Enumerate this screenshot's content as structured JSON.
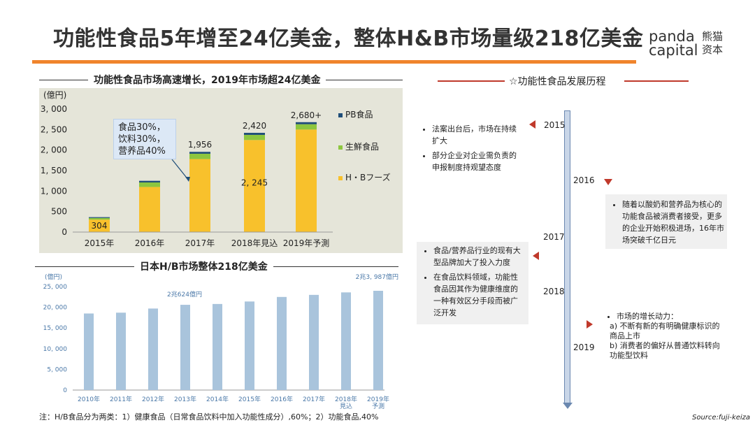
{
  "header": {
    "title": "功能性食品5年增至24亿美金，整体H&B市场量级218亿美金",
    "logo_en": "panda\ncapital",
    "logo_cn": "熊猫\n资本"
  },
  "colors": {
    "accent": "#f0842c",
    "pb": "#1f4e79",
    "fresh": "#8dc63f",
    "hb": "#f8c12c",
    "bar2": "#a9c4dc",
    "marker": "#c0392b"
  },
  "left_top": {
    "section_title": "功能性食品市场高速增长，2019年市场超24亿美金",
    "callout": [
      "食品30%，",
      "饮料30%，",
      "营养品40%"
    ]
  },
  "left_bottom": {
    "section_title": "日本H/B市场整体218亿美金"
  },
  "chart_data": [
    {
      "type": "bar",
      "stacked": true,
      "unit_label": "(億円)",
      "categories": [
        "2015年",
        "2016年",
        "2017年",
        "2018年見込",
        "2019年予測"
      ],
      "series": [
        {
          "name": "H・Bフーズ",
          "values": [
            304,
            1100,
            1780,
            2245,
            2500
          ]
        },
        {
          "name": "生鮮食品",
          "values": [
            40,
            110,
            130,
            125,
            130
          ]
        },
        {
          "name": "PB食品",
          "values": [
            20,
            40,
            46,
            50,
            50
          ]
        }
      ],
      "totals_labels": [
        "",
        "",
        "1,956",
        "2,420",
        "2,680+"
      ],
      "inner_labels": [
        "304",
        "",
        "",
        "2, 245",
        ""
      ],
      "yticks": [
        "0",
        "500",
        "1, 000",
        "1, 500",
        "2, 000",
        "2, 500",
        "3, 000"
      ],
      "ylim": [
        0,
        3000
      ],
      "legend": "right"
    },
    {
      "type": "bar",
      "unit_label": "(億円)",
      "categories": [
        "2010年",
        "2011年",
        "2012年",
        "2013年",
        "2014年",
        "2015年",
        "2016年",
        "2017年",
        "2018年\n見込",
        "2019年\n予測"
      ],
      "values": [
        18500,
        18700,
        19700,
        20600,
        20800,
        21400,
        22500,
        23000,
        23600,
        23987
      ],
      "yticks": [
        "0",
        "5, 000",
        "10, 000",
        "15, 000",
        "20, 000",
        "25, 000"
      ],
      "ylim": [
        0,
        25000
      ],
      "annotations": [
        "2兆624億円",
        "2兆3, 987億円"
      ]
    }
  ],
  "timeline": {
    "title": "☆功能性食品发展历程",
    "years": [
      "2015",
      "2016",
      "2017",
      "2018",
      "2019"
    ],
    "item_2015": [
      "法案出台后，市场在持续扩大",
      "部分企业对企业需负责的申报制度持观望态度"
    ],
    "item_2016": [
      "随着以酸奶和营养品为核心的功能食品被消费者接受，更多的企业开始积极进场，16年市场突破千亿日元"
    ],
    "item_2017": [
      "食品/营养品行业的现有大型品牌加大了投入力度",
      "在食品饮料领域，功能性食品因其作为健康维度的一种有效区分手段而被广泛开发"
    ],
    "item_2019_head": "市场的增长动力：",
    "item_2019": [
      "a)  不断有新的有明确健康标识的商品上市",
      "b)  消费者的偏好从普通饮料转向功能型饮料"
    ]
  },
  "footer": {
    "note": "注：H/B食品分为两类：1）健康食品（日常食品饮料中加入功能性成分）,60%；2）功能食品,40%",
    "source": "Source:fuji-keiza"
  }
}
